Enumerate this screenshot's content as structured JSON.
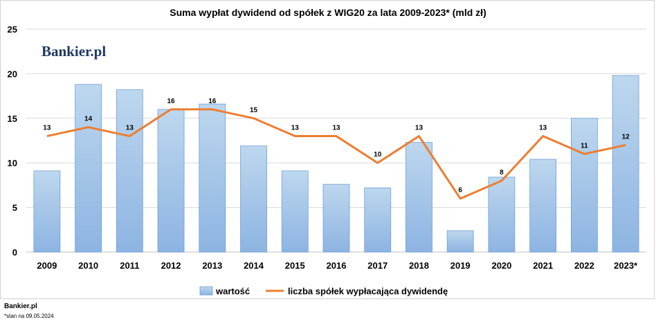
{
  "chart_data": {
    "type": "bar",
    "title": "Suma wypłat dywidend od spółek z WIG20 za lata 2009-2023* (mld zł)",
    "categories": [
      "2009",
      "2010",
      "2011",
      "2012",
      "2013",
      "2014",
      "2015",
      "2016",
      "2017",
      "2018",
      "2019",
      "2020",
      "2021",
      "2022",
      "2023*"
    ],
    "ylim": [
      0,
      25
    ],
    "yticks": [
      0,
      5,
      10,
      15,
      20,
      25
    ],
    "grid": true,
    "legend_position": "bottom",
    "series": [
      {
        "name": "wartość",
        "type": "bar",
        "color": "#9dc3e6",
        "values": [
          9.1,
          18.8,
          18.2,
          16.0,
          16.6,
          11.9,
          9.1,
          7.6,
          7.2,
          12.3,
          2.4,
          8.4,
          10.4,
          15.0,
          19.8
        ]
      },
      {
        "name": "liczba spółek wypłacająca dywidendę",
        "type": "line",
        "color": "#ed7d31",
        "values": [
          13,
          14,
          13,
          16,
          16,
          15,
          13,
          13,
          10,
          13,
          6,
          8,
          13,
          11,
          12
        ],
        "data_labels": [
          "13",
          "14",
          "13",
          "16",
          "16",
          "15",
          "13",
          "13",
          "10",
          "13",
          "6",
          "8",
          "13",
          "11",
          "12"
        ]
      }
    ]
  },
  "watermark": "Bankier.pl",
  "footer": {
    "source": "Bankier.pl",
    "note": "*stan na 09.05.2024"
  }
}
